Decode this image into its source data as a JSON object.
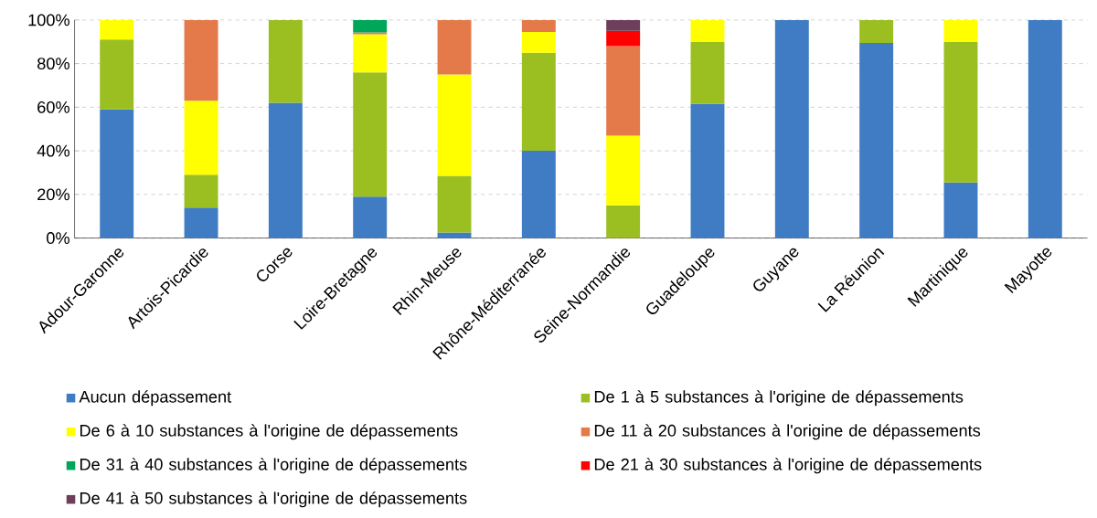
{
  "chart_data": {
    "type": "bar",
    "stacked": true,
    "categories": [
      "Adour-Garonne",
      "Artois-Picardie",
      "Corse",
      "Loire-Bretagne",
      "Rhin-Meuse",
      "Rhône-Méditerranée",
      "Seine-Normandie",
      "Guadeloupe",
      "Guyane",
      "La Réunion",
      "Martinique",
      "Mayotte"
    ],
    "series": [
      {
        "name": "Aucun dépassement",
        "color": "#3f7cc4",
        "values": [
          59,
          14,
          62,
          19,
          2.5,
          40,
          null,
          61.5,
          100,
          89.5,
          25.5,
          100
        ]
      },
      {
        "name": "De 1 à 5 substances à l'origine de dépassements",
        "color": "#9bbf21",
        "values": [
          32,
          15,
          38,
          57,
          26,
          45,
          15,
          28.5,
          null,
          10.5,
          64.5,
          null
        ]
      },
      {
        "name": "De 6 à 10 substances à l'origine de dépassements",
        "color": "#ffff00",
        "values": [
          9,
          34,
          null,
          17.5,
          46.5,
          9.5,
          32,
          10,
          null,
          null,
          10,
          null
        ]
      },
      {
        "name": "De 11 à 20 substances à l'origine de dépassements",
        "color": "#e47a4a",
        "values": [
          null,
          37,
          null,
          0.8,
          25,
          5.5,
          41,
          null,
          null,
          null,
          null,
          null
        ]
      },
      {
        "name": "De 31 à 40 substances à l'origine de dépassements",
        "color": "#00a65a",
        "values": [
          null,
          null,
          null,
          5.7,
          null,
          null,
          null,
          null,
          null,
          null,
          null,
          null
        ]
      },
      {
        "name": "De 21 à 30 substances à l'origine de dépassements",
        "color": "#ff0000",
        "values": [
          null,
          null,
          null,
          null,
          null,
          null,
          7,
          null,
          null,
          null,
          null,
          null
        ]
      },
      {
        "name": "De 41 à 50 substances à l'origine de dépassements",
        "color": "#6d3f5b",
        "values": [
          null,
          null,
          null,
          null,
          null,
          null,
          5,
          null,
          null,
          null,
          null,
          null
        ]
      }
    ],
    "ylim": [
      0,
      100
    ],
    "yticks": [
      {
        "value": 0,
        "label": "0%"
      },
      {
        "value": 20,
        "label": "20%"
      },
      {
        "value": 40,
        "label": "40%"
      },
      {
        "value": 60,
        "label": "60%"
      },
      {
        "value": 80,
        "label": "80%"
      },
      {
        "value": 100,
        "label": "100%"
      }
    ],
    "grid": "y",
    "legend": "bottom"
  }
}
